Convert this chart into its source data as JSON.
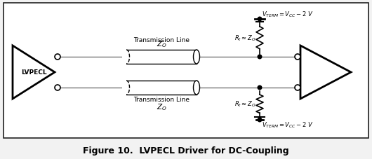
{
  "bg_color": "#f2f2f2",
  "border_color": "#222222",
  "line_color": "#777777",
  "figure_title": "Figure 10.  LVPECL Driver for DC-Coupling",
  "title_fontsize": 9,
  "black": "#000000",
  "white": "#ffffff",
  "gray": "#777777",
  "left_label": "LVPECL",
  "top_tx_label": "Transmission Line",
  "top_tx_z": "$Z_O$",
  "bot_tx_label": "Transmission Line",
  "bot_tx_z": "$Z_O$",
  "vterm_top_label": "V",
  "vterm_bot_label": "V",
  "rt_label": "R",
  "figw": 5.3,
  "figh": 2.28,
  "dpi": 100
}
